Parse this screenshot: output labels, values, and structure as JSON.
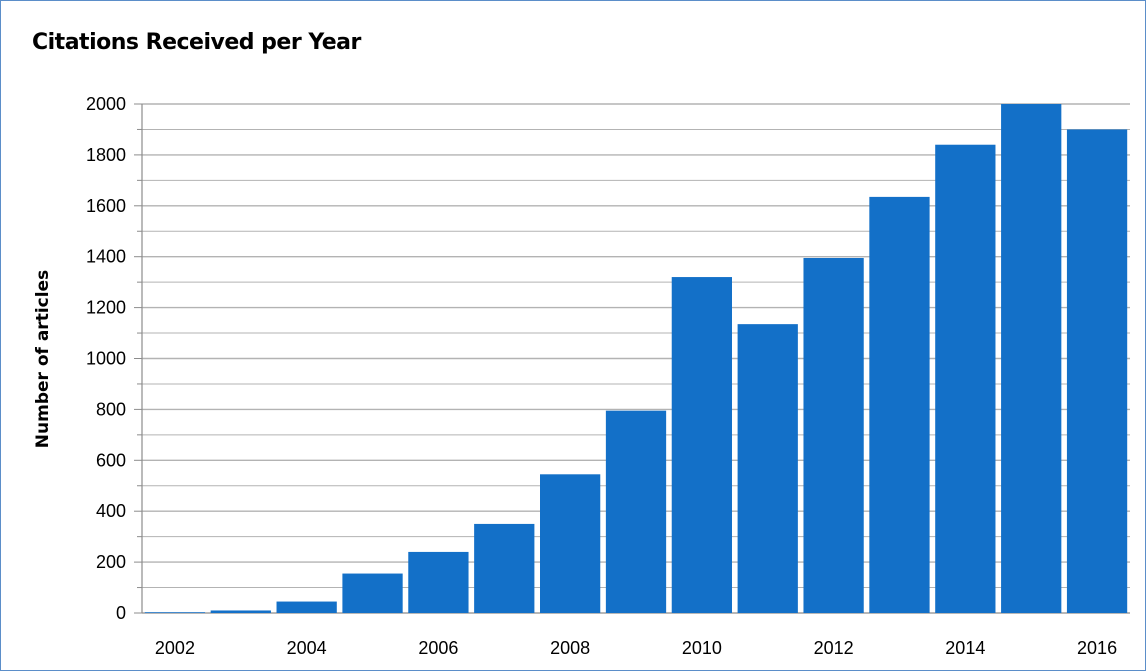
{
  "chart_data": {
    "type": "bar",
    "title": "Citations Received per Year",
    "xlabel": "",
    "ylabel": "Number of articles",
    "categories": [
      "2002",
      "2003",
      "2004",
      "2005",
      "2006",
      "2007",
      "2008",
      "2009",
      "2010",
      "2011",
      "2012",
      "2013",
      "2014",
      "2015",
      "2016"
    ],
    "values": [
      3,
      10,
      45,
      155,
      240,
      350,
      545,
      795,
      1320,
      1135,
      1395,
      1635,
      1840,
      2000,
      1900
    ],
    "x_tick_labels": [
      "2002",
      "2004",
      "2006",
      "2008",
      "2010",
      "2012",
      "2014",
      "2016"
    ],
    "y_ticks": [
      0,
      200,
      400,
      600,
      800,
      1000,
      1200,
      1400,
      1600,
      1800,
      2000
    ],
    "ylim": [
      0,
      2000
    ],
    "grid": true,
    "legend": "none",
    "bar_color": "#1370c8",
    "grid_color": "#b3b3b3"
  }
}
